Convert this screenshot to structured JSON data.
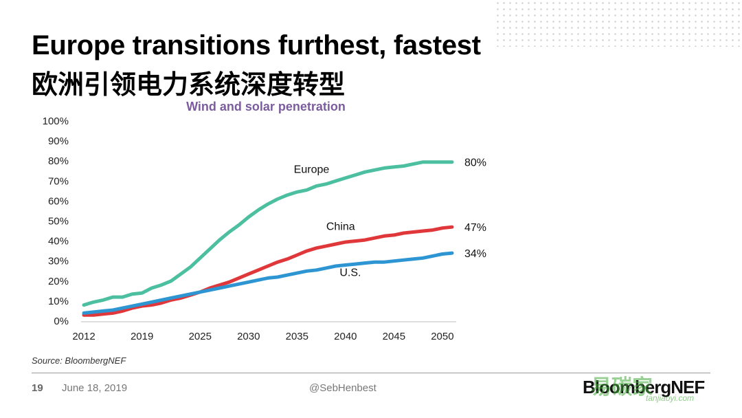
{
  "slide": {
    "title_en": "Europe transitions furthest, fastest",
    "title_zh": "欧洲引领电力系统深度转型",
    "source": "Source: BloombergNEF",
    "page_number": "19",
    "date": "June 18, 2019",
    "handle": "@SebHenbest",
    "logo_text": "BloombergNEF",
    "watermark_text": "易碳家",
    "watermark_small": "tanjiaoyi.com"
  },
  "chart_data": {
    "type": "line",
    "title": "Wind and solar penetration",
    "xlabel": "",
    "ylabel": "",
    "xlim": [
      2012,
      2050
    ],
    "ylim": [
      0,
      100
    ],
    "y_ticks": [
      "0%",
      "10%",
      "20%",
      "30%",
      "40%",
      "50%",
      "60%",
      "70%",
      "80%",
      "90%",
      "100%"
    ],
    "x_tick_labels": [
      "2012",
      "2019",
      "2025",
      "2030",
      "2035",
      "2040",
      "2045",
      "2050"
    ],
    "x_tick_positions": [
      2012,
      2018,
      2024,
      2029,
      2034,
      2039,
      2044,
      2049
    ],
    "grid": false,
    "series": [
      {
        "name": "Europe",
        "color": "#4bbf9f",
        "end_label": "80%",
        "x": [
          2012,
          2013,
          2014,
          2015,
          2016,
          2017,
          2018,
          2019,
          2020,
          2021,
          2022,
          2023,
          2024,
          2025,
          2026,
          2027,
          2028,
          2029,
          2030,
          2031,
          2032,
          2033,
          2034,
          2035,
          2036,
          2037,
          2038,
          2039,
          2040,
          2041,
          2042,
          2043,
          2044,
          2045,
          2046,
          2047,
          2048,
          2049,
          2050
        ],
        "values": [
          8,
          9.5,
          10.5,
          12,
          12,
          13.5,
          14,
          16.5,
          18,
          20,
          23.5,
          27,
          31.5,
          36,
          40.5,
          44.5,
          48,
          52,
          55.5,
          58.5,
          61,
          63,
          64.5,
          65.5,
          67.5,
          68.5,
          70,
          71.5,
          73,
          74.5,
          75.5,
          76.5,
          77,
          77.5,
          78.5,
          79.5,
          79.5,
          79.5,
          79.5
        ]
      },
      {
        "name": "China",
        "color": "#e0383a",
        "end_label": "47%",
        "x": [
          2012,
          2013,
          2014,
          2015,
          2016,
          2017,
          2018,
          2019,
          2020,
          2021,
          2022,
          2023,
          2024,
          2025,
          2026,
          2027,
          2028,
          2029,
          2030,
          2031,
          2032,
          2033,
          2034,
          2035,
          2036,
          2037,
          2038,
          2039,
          2040,
          2041,
          2042,
          2043,
          2044,
          2045,
          2046,
          2047,
          2048,
          2049,
          2050
        ],
        "values": [
          3,
          3,
          3.5,
          4,
          5,
          6.5,
          7.5,
          8,
          9,
          10.5,
          11.5,
          13,
          14.5,
          16.5,
          18,
          19.5,
          21.5,
          23.5,
          25.5,
          27.5,
          29.5,
          31,
          33,
          35,
          36.5,
          37.5,
          38.5,
          39.5,
          40,
          40.5,
          41.5,
          42.5,
          43,
          44,
          44.5,
          45,
          45.5,
          46.5,
          47
        ]
      },
      {
        "name": "U.S.",
        "color": "#2e95d3",
        "end_label": "34%",
        "x": [
          2012,
          2013,
          2014,
          2015,
          2016,
          2017,
          2018,
          2019,
          2020,
          2021,
          2022,
          2023,
          2024,
          2025,
          2026,
          2027,
          2028,
          2029,
          2030,
          2031,
          2032,
          2033,
          2034,
          2035,
          2036,
          2037,
          2038,
          2039,
          2040,
          2041,
          2042,
          2043,
          2044,
          2045,
          2046,
          2047,
          2048,
          2049,
          2050
        ],
        "values": [
          4,
          4.5,
          5,
          5.5,
          6.5,
          7.5,
          8.5,
          9.5,
          10.5,
          11.5,
          12.5,
          13.5,
          14.5,
          15.5,
          16.5,
          17.5,
          18.5,
          19.5,
          20.5,
          21.5,
          22,
          23,
          24,
          25,
          25.5,
          26.5,
          27.5,
          28,
          28.5,
          29,
          29.5,
          29.5,
          30,
          30.5,
          31,
          31.5,
          32.5,
          33.5,
          34
        ]
      }
    ]
  }
}
